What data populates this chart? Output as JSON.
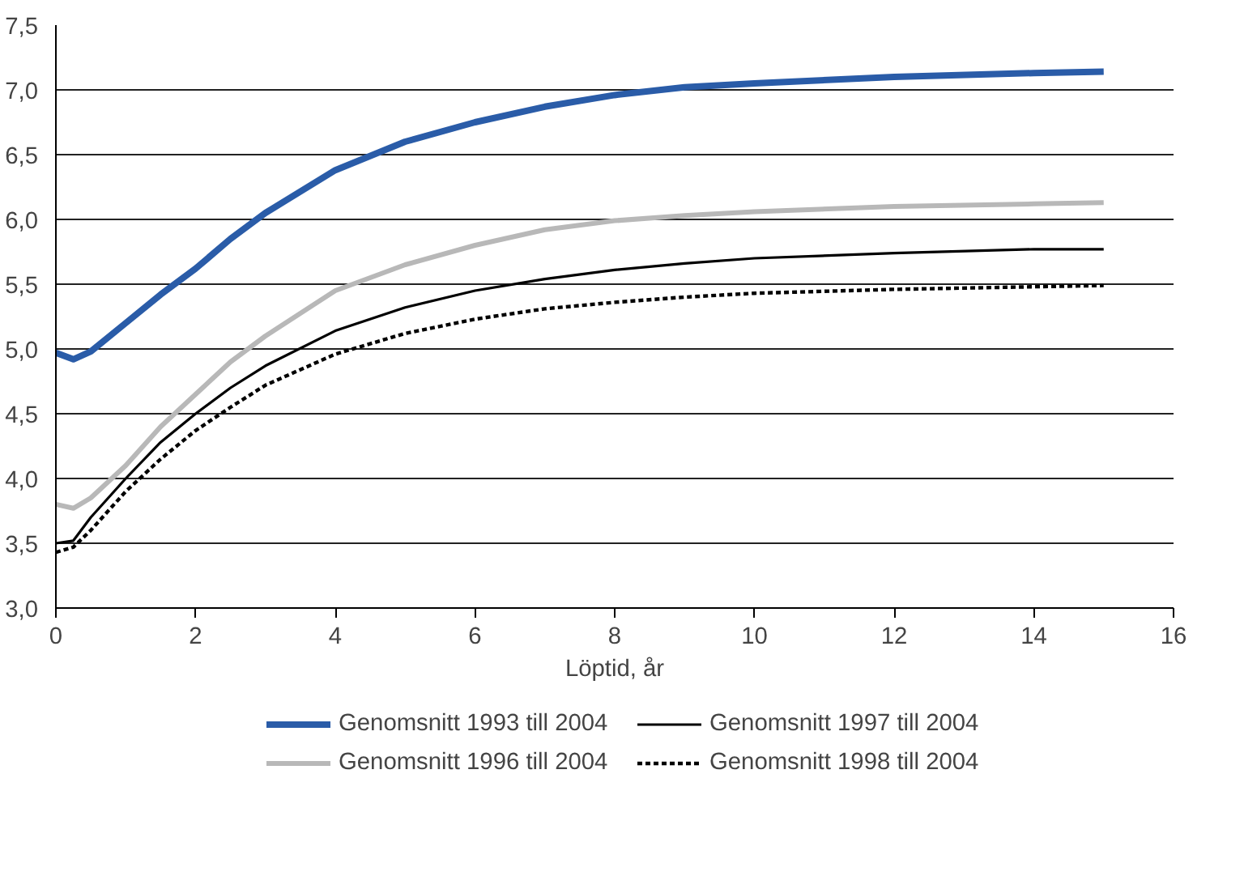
{
  "chart_data": {
    "type": "line",
    "xlabel": "Löptid, år",
    "x": [
      0,
      0.25,
      0.5,
      1,
      1.5,
      2,
      2.5,
      3,
      4,
      5,
      6,
      7,
      8,
      9,
      10,
      12,
      14,
      15
    ],
    "series": [
      {
        "name": "Genomsnitt 1993 till 2004",
        "color": "#2a5ca8",
        "values": [
          4.97,
          4.92,
          4.98,
          5.2,
          5.42,
          5.62,
          5.85,
          6.05,
          6.38,
          6.6,
          6.75,
          6.87,
          6.96,
          7.02,
          7.05,
          7.1,
          7.13,
          7.14
        ]
      },
      {
        "name": "Genomsnitt 1996 till 2004",
        "color": "#b8b8b8",
        "values": [
          3.8,
          3.77,
          3.85,
          4.1,
          4.4,
          4.65,
          4.9,
          5.1,
          5.45,
          5.65,
          5.8,
          5.92,
          5.99,
          6.03,
          6.06,
          6.1,
          6.12,
          6.13
        ]
      },
      {
        "name": "Genomsnitt 1997 till 2004",
        "color": "#000000",
        "values": [
          3.5,
          3.52,
          3.7,
          4.0,
          4.28,
          4.5,
          4.7,
          4.87,
          5.14,
          5.32,
          5.45,
          5.54,
          5.61,
          5.66,
          5.7,
          5.74,
          5.77,
          5.77
        ]
      },
      {
        "name": "Genomsnitt 1998 till 2004",
        "color": "#000000",
        "line_style": "dashed",
        "values": [
          3.43,
          3.47,
          3.6,
          3.9,
          4.15,
          4.37,
          4.55,
          4.72,
          4.96,
          5.12,
          5.23,
          5.31,
          5.36,
          5.4,
          5.43,
          5.46,
          5.48,
          5.49
        ]
      }
    ],
    "xlim": [
      0,
      16
    ],
    "xticks": [
      0,
      2,
      4,
      6,
      8,
      10,
      12,
      14,
      16
    ],
    "ylim": [
      3,
      7.5
    ],
    "yticks": [
      {
        "value": 3,
        "label": "3,0"
      },
      {
        "value": 3.5,
        "label": "3,5"
      },
      {
        "value": 4,
        "label": "4,0"
      },
      {
        "value": 4.5,
        "label": "4,5"
      },
      {
        "value": 5,
        "label": "5,0"
      },
      {
        "value": 5.5,
        "label": "5,5"
      },
      {
        "value": 6,
        "label": "6,0"
      },
      {
        "value": 6.5,
        "label": "6,5"
      },
      {
        "value": 7,
        "label": "7,0"
      },
      {
        "value": 7.5,
        "label": "7,5"
      }
    ],
    "grid": "y",
    "legend": "bottom",
    "marker": "none",
    "line_style": "solid"
  }
}
